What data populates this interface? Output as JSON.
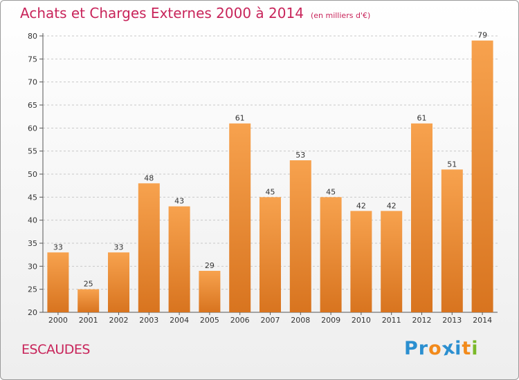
{
  "header": {
    "title": "Achats et Charges Externes 2000 à 2014",
    "subtitle": "(en milliers d'€)"
  },
  "footer": {
    "location": "ESCAUDES",
    "brand": "Proxiti",
    "brand_letters": [
      {
        "char": "P",
        "color": "#2b8fd0"
      },
      {
        "char": "r",
        "color": "#2b8fd0"
      },
      {
        "char": "o",
        "color": "#f28a1b"
      },
      {
        "char": "x",
        "color": "#2b8fd0"
      },
      {
        "char": "i",
        "color": "#2b8fd0"
      },
      {
        "char": "t",
        "color": "#f28a1b"
      },
      {
        "char": "i",
        "color": "#7ab929"
      }
    ]
  },
  "colors": {
    "title": "#c8245a",
    "bar_top": "#f7a24e",
    "bar_bottom": "#d8741f",
    "grid": "#c8c8c8"
  },
  "chart_data": {
    "type": "bar",
    "title": "Achats et Charges Externes 2000 à 2014",
    "subtitle": "(en milliers d'€)",
    "categories": [
      "2000",
      "2001",
      "2002",
      "2003",
      "2004",
      "2005",
      "2006",
      "2007",
      "2008",
      "2009",
      "2010",
      "2011",
      "2012",
      "2013",
      "2014"
    ],
    "values": [
      33,
      25,
      33,
      48,
      43,
      29,
      61,
      45,
      53,
      45,
      42,
      42,
      61,
      51,
      79
    ],
    "ylim": [
      20,
      80
    ],
    "yticks": [
      20,
      25,
      30,
      35,
      40,
      45,
      50,
      55,
      60,
      65,
      70,
      75,
      80
    ],
    "xlabel": "",
    "ylabel": "",
    "grid": true
  }
}
